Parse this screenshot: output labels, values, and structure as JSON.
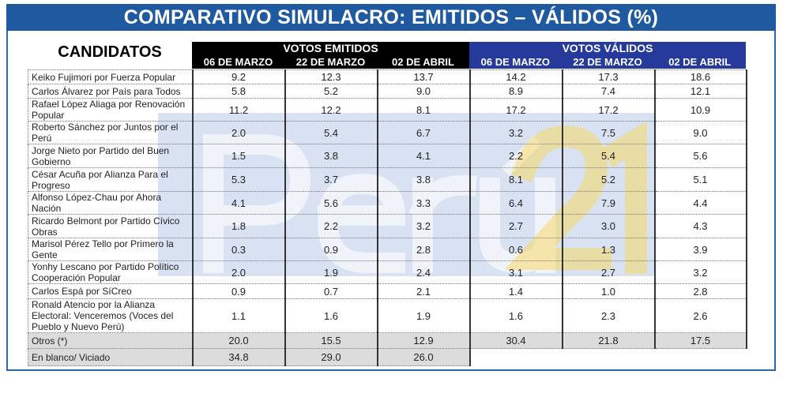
{
  "title": "COMPARATIVO SIMULACRO: EMITIDOS – VÁLIDOS (%)",
  "candidates_header": "CANDIDATOS",
  "groups": {
    "emitidos": {
      "label": "VOTOS EMITIDOS",
      "dates": [
        "06 DE MARZO",
        "22  DE MARZO",
        "02 DE ABRIL"
      ]
    },
    "validos": {
      "label": "VOTOS VÁLIDOS",
      "dates": [
        "06  DE  MARZO",
        "22 DE MARZO",
        "02 DE ABRIL"
      ]
    }
  },
  "watermark": {
    "text1": "Perú",
    "text2": "21"
  },
  "rows": [
    {
      "name": "Keiko Fujimori por Fuerza Popular",
      "emitidos": [
        "9.2",
        "12.3",
        "13.7"
      ],
      "validos": [
        "14.2",
        "17.3",
        "18.6"
      ]
    },
    {
      "name": "Carlos Álvarez por País para Todos",
      "emitidos": [
        "5.8",
        "5.2",
        "9.0"
      ],
      "validos": [
        "8.9",
        "7.4",
        "12.1"
      ]
    },
    {
      "name": "Rafael López Aliaga por Renovación Popular",
      "emitidos": [
        "11.2",
        "12.2",
        "8.1"
      ],
      "validos": [
        "17.2",
        "17.2",
        "10.9"
      ]
    },
    {
      "name": "Roberto Sánchez por Juntos por el Perú",
      "emitidos": [
        "2.0",
        "5.4",
        "6.7"
      ],
      "validos": [
        "3.2",
        "7.5",
        "9.0"
      ]
    },
    {
      "name": "Jorge Nieto por Partido del Buen Gobierno",
      "emitidos": [
        "1.5",
        "3.8",
        "4.1"
      ],
      "validos": [
        "2.2",
        "5.4",
        "5.6"
      ]
    },
    {
      "name": "César Acuña por Alianza Para el Progreso",
      "emitidos": [
        "5.3",
        "3.7",
        "3.8"
      ],
      "validos": [
        "8.1",
        "5.2",
        "5.1"
      ]
    },
    {
      "name": "Alfonso López-Chau por Ahora Nación",
      "emitidos": [
        "4.1",
        "5.6",
        "3.3"
      ],
      "validos": [
        "6.4",
        "7.9",
        "4.4"
      ]
    },
    {
      "name": "Ricardo Belmont por Partido Cívico Obras",
      "emitidos": [
        "1.8",
        "2.2",
        "3.2"
      ],
      "validos": [
        "2.7",
        "3.0",
        "4.3"
      ]
    },
    {
      "name": "Marisol Pérez Tello por Primero la Gente",
      "emitidos": [
        "0.3",
        "0.9",
        "2.8"
      ],
      "validos": [
        "0.6",
        "1.3",
        "3.9"
      ]
    },
    {
      "name": "Yonhy Lescano por Partido Político Cooperación Popular",
      "emitidos": [
        "2.0",
        "1.9",
        "2.4"
      ],
      "validos": [
        "3.1",
        "2.7",
        "3.2"
      ]
    },
    {
      "name": "Carlos Espá por SíCreo",
      "emitidos": [
        "0.9",
        "0.7",
        "2.1"
      ],
      "validos": [
        "1.4",
        "1.0",
        "2.8"
      ]
    },
    {
      "name": "Ronald Atencio por la Alianza Electoral: Venceremos (Voces del Pueblo y Nuevo Perú)",
      "emitidos": [
        "1.1",
        "1.6",
        "1.9"
      ],
      "validos": [
        "1.6",
        "2.3",
        "2.6"
      ]
    },
    {
      "name": "Otros (*)",
      "emitidos": [
        "20.0",
        "15.5",
        "12.9"
      ],
      "validos": [
        "30.4",
        "21.8",
        "17.5"
      ],
      "gray": true
    },
    {
      "name": "En blanco/ Viciado",
      "emitidos": [
        "34.8",
        "29.0",
        "26.0"
      ],
      "validos": [],
      "gray": true
    }
  ]
}
